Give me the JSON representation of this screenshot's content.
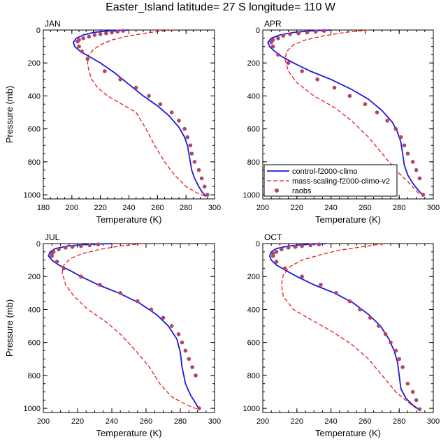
{
  "title": "Easter_Island  latitude= 27 S longitude= 110 W",
  "chart_data": [
    {
      "type": "line",
      "panel_label": "JAN",
      "xlabel": "Temperature (K)",
      "ylabel": "Pressure (mb)",
      "xlim": [
        180,
        300
      ],
      "ylim": [
        1025,
        0
      ],
      "xticks": [
        "180",
        "200",
        "220",
        "240",
        "260",
        "280",
        "300"
      ],
      "yticks": [
        "0",
        "200",
        "400",
        "600",
        "800",
        "1000"
      ],
      "series": [
        {
          "name": "control-f2000-climo",
          "style": "solid",
          "color": "#1a1adc",
          "x": [
            240,
            225,
            215,
            208,
            203,
            201,
            202,
            206,
            212,
            220,
            230,
            240,
            250,
            260,
            268,
            275,
            279,
            281,
            282,
            283,
            284,
            286,
            289,
            291,
            294
          ],
          "y": [
            0,
            5,
            15,
            30,
            50,
            75,
            100,
            130,
            160,
            200,
            260,
            330,
            400,
            460,
            520,
            590,
            650,
            700,
            750,
            800,
            850,
            900,
            950,
            980,
            1010
          ]
        },
        {
          "name": "mass-scaling-f2000-climo-v2",
          "style": "dashed",
          "color": "#e81c1c",
          "x": [
            270,
            255,
            240,
            228,
            220,
            215,
            212,
            211,
            212,
            214,
            218,
            225,
            235,
            245,
            252,
            258,
            265,
            272,
            280,
            288,
            294
          ],
          "y": [
            0,
            15,
            35,
            60,
            90,
            120,
            150,
            200,
            250,
            300,
            350,
            400,
            450,
            500,
            600,
            700,
            800,
            880,
            950,
            990,
            1010
          ]
        },
        {
          "name": "raobs",
          "style": "dots",
          "color": "#b0446a",
          "x": [
            236,
            232,
            228,
            224,
            220,
            216,
            212,
            208,
            205,
            204,
            205,
            207,
            211,
            223,
            234,
            245,
            254,
            262,
            270,
            275,
            279,
            281,
            283,
            284,
            286,
            289,
            291,
            293,
            295
          ],
          "y": [
            5,
            10,
            15,
            20,
            25,
            30,
            40,
            50,
            60,
            70,
            100,
            130,
            175,
            250,
            300,
            350,
            400,
            450,
            500,
            550,
            600,
            650,
            700,
            750,
            800,
            850,
            900,
            950,
            1000
          ]
        }
      ]
    },
    {
      "type": "line",
      "panel_label": "APR",
      "xlabel": "Temperature (K)",
      "ylabel": "",
      "xlim": [
        200,
        300
      ],
      "ylim": [
        1025,
        0
      ],
      "xticks": [
        "200",
        "220",
        "240",
        "260",
        "280",
        "300"
      ],
      "yticks": [
        "0",
        "200",
        "400",
        "600",
        "800",
        "1000"
      ],
      "legend_position": "bottom-left",
      "series": [
        {
          "name": "control-f2000-climo",
          "style": "solid",
          "color": "#1a1adc",
          "x": [
            240,
            228,
            218,
            210,
            205,
            203,
            204,
            207,
            211,
            218,
            228,
            240,
            252,
            262,
            270,
            276,
            279,
            281,
            282,
            283,
            285,
            288,
            291,
            294
          ],
          "y": [
            0,
            5,
            15,
            30,
            50,
            75,
            100,
            130,
            160,
            200,
            250,
            300,
            360,
            420,
            490,
            560,
            620,
            680,
            750,
            820,
            880,
            930,
            970,
            1005
          ]
        },
        {
          "name": "mass-scaling-f2000-climo-v2",
          "style": "dashed",
          "color": "#e81c1c",
          "x": [
            262,
            248,
            236,
            225,
            218,
            214,
            213,
            215,
            220,
            230,
            242,
            252,
            262,
            270,
            278,
            286,
            292
          ],
          "y": [
            0,
            15,
            35,
            60,
            90,
            130,
            175,
            250,
            320,
            400,
            470,
            550,
            650,
            750,
            850,
            930,
            1000
          ]
        },
        {
          "name": "raobs",
          "style": "dots",
          "color": "#b0446a",
          "x": [
            236,
            231,
            226,
            221,
            216,
            212,
            209,
            206,
            205,
            206,
            209,
            215,
            223,
            232,
            242,
            251,
            260,
            267,
            273,
            278,
            281,
            283,
            285,
            288,
            290,
            292,
            294
          ],
          "y": [
            5,
            10,
            15,
            20,
            25,
            35,
            50,
            60,
            75,
            100,
            150,
            200,
            250,
            300,
            350,
            400,
            450,
            500,
            550,
            600,
            650,
            700,
            750,
            800,
            850,
            900,
            1000
          ]
        }
      ]
    },
    {
      "type": "line",
      "panel_label": "JUL",
      "xlabel": "Temperature (K)",
      "ylabel": "Pressure (mb)",
      "xlim": [
        200,
        300
      ],
      "ylim": [
        1025,
        0
      ],
      "xticks": [
        "200",
        "220",
        "240",
        "260",
        "280",
        "300"
      ],
      "yticks": [
        "0",
        "200",
        "400",
        "600",
        "800",
        "1000"
      ],
      "series": [
        {
          "name": "control-f2000-climo",
          "style": "solid",
          "color": "#1a1adc",
          "x": [
            240,
            225,
            214,
            207,
            204,
            203,
            205,
            209,
            215,
            222,
            232,
            244,
            256,
            266,
            273,
            278,
            280,
            281,
            283,
            286,
            289,
            291
          ],
          "y": [
            0,
            5,
            15,
            30,
            50,
            75,
            100,
            130,
            160,
            200,
            250,
            300,
            360,
            430,
            500,
            580,
            660,
            750,
            850,
            920,
            970,
            1005
          ]
        },
        {
          "name": "mass-scaling-f2000-climo-v2",
          "style": "dashed",
          "color": "#e81c1c",
          "x": [
            258,
            245,
            233,
            223,
            216,
            212,
            211,
            213,
            218,
            226,
            236,
            245,
            254,
            262,
            268,
            275,
            284,
            290
          ],
          "y": [
            0,
            15,
            35,
            60,
            90,
            130,
            175,
            250,
            320,
            400,
            470,
            550,
            650,
            750,
            850,
            930,
            980,
            1005
          ]
        },
        {
          "name": "raobs",
          "style": "dots",
          "color": "#b0446a",
          "x": [
            232,
            227,
            222,
            217,
            213,
            209,
            206,
            205,
            205,
            208,
            212,
            222,
            233,
            245,
            255,
            263,
            270,
            275,
            279,
            281,
            283,
            285,
            287,
            289,
            291
          ],
          "y": [
            5,
            10,
            15,
            20,
            25,
            35,
            50,
            60,
            75,
            110,
            150,
            200,
            250,
            300,
            350,
            400,
            450,
            500,
            550,
            600,
            650,
            700,
            750,
            800,
            1000
          ]
        }
      ]
    },
    {
      "type": "line",
      "panel_label": "OCT",
      "xlabel": "Temperature (K)",
      "ylabel": "",
      "xlim": [
        200,
        300
      ],
      "ylim": [
        1025,
        0
      ],
      "xticks": [
        "200",
        "220",
        "240",
        "260",
        "280",
        "300"
      ],
      "yticks": [
        "0",
        "200",
        "400",
        "600",
        "800",
        "1000"
      ],
      "series": [
        {
          "name": "control-f2000-climo",
          "style": "solid",
          "color": "#1a1adc",
          "x": [
            237,
            225,
            215,
            208,
            205,
            204,
            205,
            208,
            213,
            220,
            230,
            242,
            253,
            262,
            269,
            274,
            277,
            279,
            280,
            281,
            284,
            288,
            292
          ],
          "y": [
            0,
            5,
            15,
            30,
            50,
            75,
            100,
            130,
            160,
            200,
            250,
            300,
            360,
            430,
            500,
            580,
            650,
            720,
            800,
            880,
            940,
            980,
            1010
          ]
        },
        {
          "name": "mass-scaling-f2000-climo-v2",
          "style": "dashed",
          "color": "#e81c1c",
          "x": [
            271,
            258,
            245,
            233,
            223,
            216,
            212,
            211,
            212,
            218,
            228,
            240,
            252,
            262,
            270,
            278,
            285,
            290
          ],
          "y": [
            0,
            20,
            40,
            70,
            100,
            140,
            190,
            250,
            320,
            400,
            460,
            530,
            610,
            700,
            800,
            900,
            960,
            1000
          ]
        },
        {
          "name": "raobs",
          "style": "dots",
          "color": "#b0446a",
          "x": [
            233,
            228,
            223,
            219,
            215,
            211,
            208,
            206,
            206,
            208,
            213,
            223,
            234,
            243,
            251,
            257,
            263,
            268,
            272,
            275,
            278,
            280,
            282,
            285,
            288,
            290,
            292
          ],
          "y": [
            5,
            10,
            15,
            20,
            25,
            35,
            50,
            60,
            75,
            110,
            150,
            200,
            250,
            300,
            350,
            400,
            450,
            500,
            550,
            600,
            650,
            700,
            750,
            850,
            900,
            950,
            1005
          ]
        }
      ]
    }
  ]
}
